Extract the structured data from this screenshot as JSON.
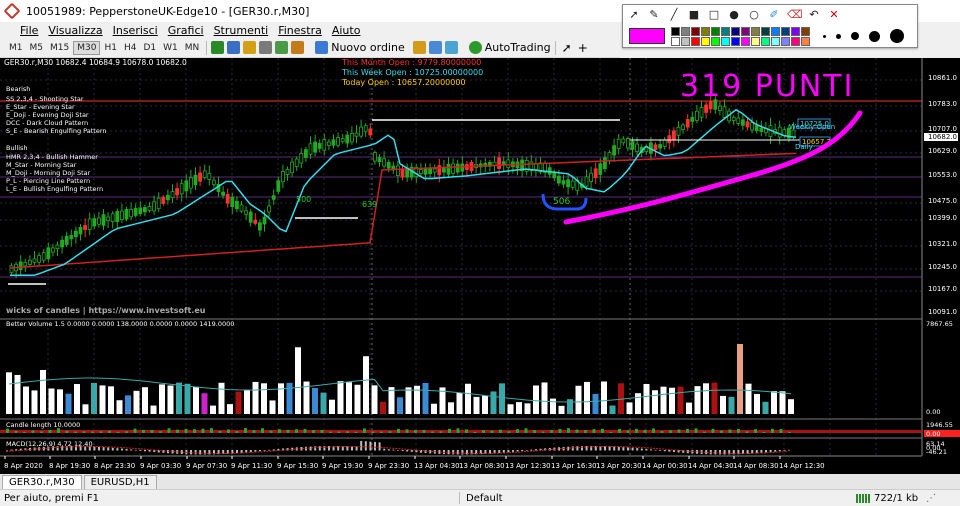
{
  "window": {
    "title": "10051989: PepperstoneUK-Edge10 - [GER30.r,M30]"
  },
  "menu": [
    "File",
    "Visualizza",
    "Inserisci",
    "Grafici",
    "Strumenti",
    "Finestra",
    "Aiuto"
  ],
  "toolbar": {
    "timeframes": [
      "M1",
      "M5",
      "M15",
      "M30",
      "H1",
      "H4",
      "D1",
      "W1",
      "MN"
    ],
    "new_order": "Nuovo ordine",
    "autotrading": "AutoTrading"
  },
  "chart": {
    "header": "GER30.r,M30  10682.4 10684.9 10678.0 10682.0",
    "month_open": "This Month Open  :  9779.80000000",
    "week_open": "This Week Open  :  10725.00000000",
    "today_open": "Today Open       :  10657.20000000",
    "bearish_title": "Bearish",
    "bearish_items": [
      "SS 2,3,4 - Shooting Star",
      "E_Star    - Evening Star",
      "E_Doji   - Evening Doji Star",
      "DCC      - Dark Cloud Pattern",
      "S_E       - Bearish Engulfing Pattern"
    ],
    "bullish_title": "Bullish",
    "bullish_items": [
      "HMR 2,3,4 - Bullish Hammer",
      "M_Star    - Morning Star",
      "M_Doji    - Morning Doji Star",
      "P_L        - Piercing Line Pattern",
      "L_E        - Bullish Engulfing Pattern"
    ],
    "watermark": "wicks of candles | https://www.investsoft.eu",
    "annotation": "319 PUNTI",
    "lbl_500": "500",
    "lbl_639": "639",
    "lbl_506": "506",
    "lbl_week_open": "Weekly Open",
    "lbl_daily": "Daily",
    "lbl_10725": "10725.0",
    "lbl_10657": "10657.2",
    "price_labels": [
      "10861.0",
      "10783.0",
      "10707.0",
      "10682.0",
      "10629.0",
      "10553.0",
      "10475.0",
      "10399.0",
      "10321.0",
      "10245.0",
      "10167.0",
      "10091.0"
    ],
    "volume_header": "Better Volume 1.5  0.0000  0.0000  138.0000  0.0000  0.0000  1419.0000",
    "volume_scale": [
      "7867.65",
      "0.00"
    ],
    "candle_header": "Candle length 10.0000",
    "candle_scale": [
      "1946.55",
      "0.00"
    ],
    "macd_header": "MACD(12,26,9) 4.72 12.40",
    "macd_scale": [
      "63.14",
      "0.00",
      "-46.21"
    ],
    "time_labels": [
      "8 Apr 2020",
      "8 Apr 19:30",
      "8 Apr 23:30",
      "9 Apr 03:30",
      "9 Apr 07:30",
      "9 Apr 11:30",
      "9 Apr 15:30",
      "9 Apr 19:30",
      "9 Apr 23:30",
      "13 Apr 04:30",
      "13 Apr 08:30",
      "13 Apr 12:30",
      "13 Apr 16:30",
      "13 Apr 20:30",
      "14 Apr 00:30",
      "14 Apr 04:30",
      "14 Apr 08:30",
      "14 Apr 12:30"
    ]
  },
  "tabs": [
    "GER30.r,M30",
    "EURUSD,H1"
  ],
  "status": {
    "help": "Per aiuto, premi F1",
    "profile": "Default",
    "traffic": "722/1 kb"
  },
  "colors": {
    "background": "#000000",
    "grid": "#3a3a4a",
    "bull": "#22aa22",
    "bear": "#ff3030",
    "ma_fast": "#33ddee",
    "ma_slow": "#cc2222",
    "annotation": "#ff00ff",
    "month_open": "#ff3030",
    "week_open": "#33ddee",
    "today_open": "#ffcc00",
    "palette": [
      "#000000",
      "#808080",
      "#800000",
      "#808000",
      "#008000",
      "#008080",
      "#000080",
      "#800080",
      "#808040",
      "#004040",
      "#0080ff",
      "#004080",
      "#8000ff",
      "#804000",
      "#ffffff",
      "#c0c0c0",
      "#ff0000",
      "#ffff00",
      "#00ff00",
      "#00ffff",
      "#0000ff",
      "#ff00ff",
      "#ffff80",
      "#00ff80",
      "#80ffff",
      "#8080ff",
      "#ff0080",
      "#ff8040"
    ]
  }
}
